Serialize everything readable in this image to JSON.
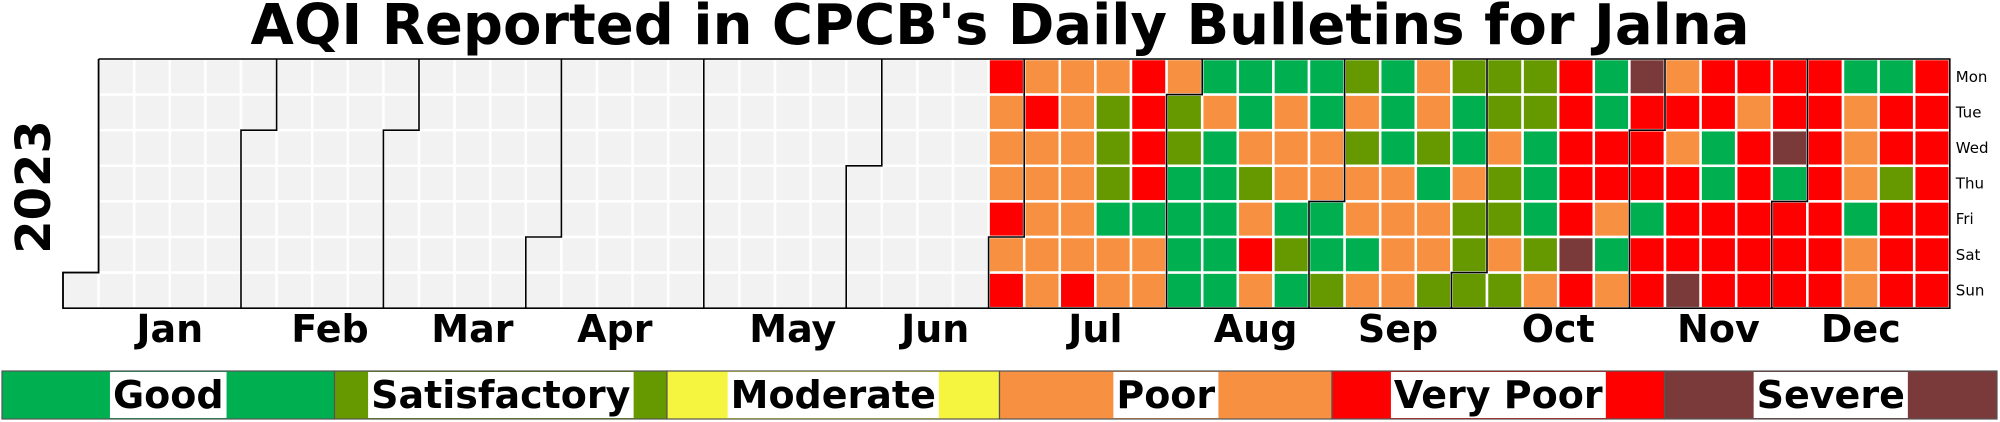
{
  "chart_data": {
    "type": "heatmap",
    "title": "AQI Reported in CPCB's Daily Bulletins for Jalna",
    "year_label": "2023",
    "year": 2023,
    "first_weekday_of_year": "Sun",
    "weekday_labels": [
      "Mon",
      "Tue",
      "Wed",
      "Thu",
      "Fri",
      "Sat",
      "Sun"
    ],
    "month_labels": [
      "Jan",
      "Feb",
      "Mar",
      "Apr",
      "May",
      "Jun",
      "Jul",
      "Aug",
      "Sep",
      "Oct",
      "Nov",
      "Dec"
    ],
    "categories": [
      "Good",
      "Satisfactory",
      "Moderate",
      "Poor",
      "Very Poor",
      "Severe"
    ],
    "category_colors": {
      "Good": "#00b050",
      "Satisfactory": "#669900",
      "Moderate": "#f5f540",
      "Poor": "#f79040",
      "Very Poor": "#ff0000",
      "Severe": "#7b3a3a",
      "No data": "#f2f2f2"
    },
    "legend": {
      "position": "bottom",
      "items": [
        "Good",
        "Satisfactory",
        "Moderate",
        "Poor",
        "Very Poor",
        "Severe"
      ]
    },
    "weeks": [
      {
        "week": 26,
        "days": [
          "Very Poor",
          "Poor",
          "Poor",
          "Poor",
          "Very Poor",
          "Poor",
          "Very Poor"
        ]
      },
      {
        "week": 27,
        "days": [
          "Poor",
          "Very Poor",
          "Poor",
          "Poor",
          "Poor",
          "Poor",
          "Poor"
        ]
      },
      {
        "week": 28,
        "days": [
          "Poor",
          "Poor",
          "Poor",
          "Poor",
          "Poor",
          "Poor",
          "Very Poor"
        ]
      },
      {
        "week": 29,
        "days": [
          "Poor",
          "Satisfactory",
          "Satisfactory",
          "Satisfactory",
          "Good",
          "Poor",
          "Poor"
        ]
      },
      {
        "week": 30,
        "days": [
          "Very Poor",
          "Very Poor",
          "Very Poor",
          "Very Poor",
          "Good",
          "Poor",
          "Poor"
        ]
      },
      {
        "week": 31,
        "days": [
          "Poor",
          "Satisfactory",
          "Satisfactory",
          "Good",
          "Good",
          "Good",
          "Good"
        ]
      },
      {
        "week": 32,
        "days": [
          "Good",
          "Poor",
          "Good",
          "Good",
          "Good",
          "Good",
          "Good"
        ]
      },
      {
        "week": 33,
        "days": [
          "Good",
          "Good",
          "Poor",
          "Satisfactory",
          "Poor",
          "Very Poor",
          "Poor"
        ]
      },
      {
        "week": 34,
        "days": [
          "Good",
          "Poor",
          "Poor",
          "Poor",
          "Good",
          "Satisfactory",
          "Good"
        ]
      },
      {
        "week": 35,
        "days": [
          "Good",
          "Good",
          "Poor",
          "Poor",
          "Good",
          "Good",
          "Satisfactory"
        ]
      },
      {
        "week": 36,
        "days": [
          "Satisfactory",
          "Poor",
          "Satisfactory",
          "Poor",
          "Poor",
          "Good",
          "Poor"
        ]
      },
      {
        "week": 37,
        "days": [
          "Good",
          "Good",
          "Good",
          "Poor",
          "Poor",
          "Poor",
          "Poor"
        ]
      },
      {
        "week": 38,
        "days": [
          "Poor",
          "Poor",
          "Satisfactory",
          "Good",
          "Poor",
          "Poor",
          "Satisfactory"
        ]
      },
      {
        "week": 39,
        "days": [
          "Satisfactory",
          "Good",
          "Good",
          "Poor",
          "Satisfactory",
          "Satisfactory",
          "Satisfactory"
        ]
      },
      {
        "week": 40,
        "days": [
          "Satisfactory",
          "Satisfactory",
          "Poor",
          "Satisfactory",
          "Satisfactory",
          "Poor",
          "Satisfactory"
        ]
      },
      {
        "week": 41,
        "days": [
          "Satisfactory",
          "Satisfactory",
          "Good",
          "Good",
          "Good",
          "Satisfactory",
          "Poor"
        ]
      },
      {
        "week": 42,
        "days": [
          "Very Poor",
          "Very Poor",
          "Very Poor",
          "Very Poor",
          "Very Poor",
          "Severe",
          "Very Poor"
        ]
      },
      {
        "week": 43,
        "days": [
          "Good",
          "Good",
          "Very Poor",
          "Very Poor",
          "Poor",
          "Good",
          "Poor"
        ]
      },
      {
        "week": 44,
        "days": [
          "Severe",
          "Very Poor",
          "Very Poor",
          "Very Poor",
          "Good",
          "Very Poor",
          "Very Poor"
        ]
      },
      {
        "week": 45,
        "days": [
          "Poor",
          "Very Poor",
          "Poor",
          "Very Poor",
          "Very Poor",
          "Very Poor",
          "Severe"
        ]
      },
      {
        "week": 46,
        "days": [
          "Very Poor",
          "Very Poor",
          "Good",
          "Good",
          "Very Poor",
          "Very Poor",
          "Very Poor"
        ]
      },
      {
        "week": 47,
        "days": [
          "Very Poor",
          "Poor",
          "Very Poor",
          "Very Poor",
          "Very Poor",
          "Very Poor",
          "Very Poor"
        ]
      },
      {
        "week": 48,
        "days": [
          "Very Poor",
          "Very Poor",
          "Severe",
          "Good",
          "Very Poor",
          "Very Poor",
          "Very Poor"
        ]
      },
      {
        "week": 49,
        "days": [
          "Very Poor",
          "Very Poor",
          "Very Poor",
          "Very Poor",
          "Very Poor",
          "Very Poor",
          "Very Poor"
        ]
      },
      {
        "week": 50,
        "days": [
          "Good",
          "Poor",
          "Poor",
          "Poor",
          "Good",
          "Poor",
          "Poor"
        ]
      },
      {
        "week": 51,
        "days": [
          "Good",
          "Very Poor",
          "Very Poor",
          "Satisfactory",
          "Very Poor",
          "Very Poor",
          "Very Poor"
        ]
      },
      {
        "week": 52,
        "days": [
          "Very Poor",
          "Very Poor",
          "Very Poor",
          "Very Poor",
          "Very Poor",
          "Very Poor",
          "Very Poor"
        ]
      },
      {
        "week": 53,
        "days": [
          "Very Poor",
          "Poor",
          "Very Poor",
          "Very Poor",
          "Very Poor",
          "Very Poor",
          "Good"
        ]
      },
      {
        "week": 54,
        "days": [
          "Severe",
          "Very Poor",
          "Severe",
          "Severe",
          "Severe",
          "Good",
          "Poor"
        ]
      }
    ]
  }
}
